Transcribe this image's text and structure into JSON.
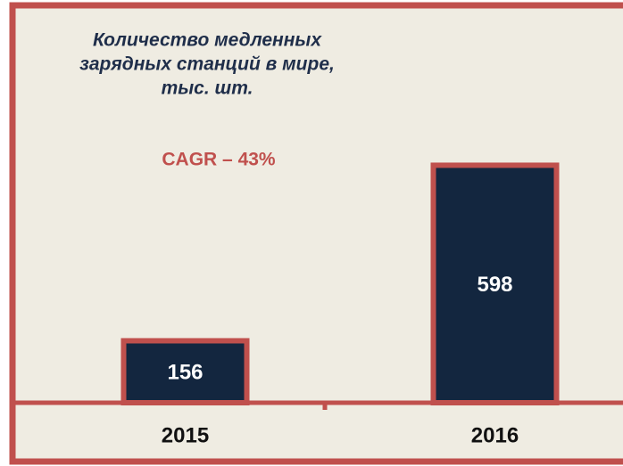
{
  "chart_data": {
    "type": "bar",
    "title": [
      "Количество медленных",
      "зарядных станций в мире,",
      "тыс. шт."
    ],
    "annotation": "CAGR – 43%",
    "categories": [
      "2015",
      "2016"
    ],
    "values": [
      156,
      598
    ],
    "color": "#13263f",
    "edge_color": "#c0504d",
    "ylim": [
      0,
      700
    ]
  }
}
